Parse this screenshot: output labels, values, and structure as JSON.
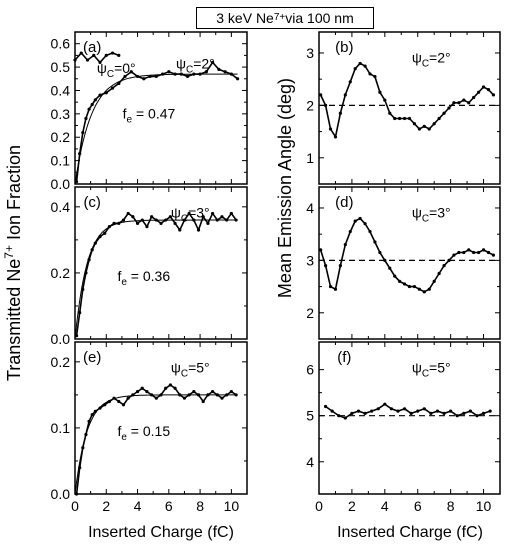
{
  "figure": {
    "title_pre": "3 keV Ne",
    "title_sup": "7+",
    "title_post": " via 100 nm",
    "left_ylabel": "Transmitted Ne7+ Ion Fraction",
    "right_ylabel": "Mean Emission Angle (deg)",
    "xlabel": "Inserted Charge (fC)",
    "colors": {
      "axes": "#000000",
      "data": "#000000",
      "fit": "#000000"
    }
  },
  "chart_data": [
    {
      "id": "a",
      "label": "(a)",
      "type": "line",
      "column": "left",
      "annotations": [
        {
          "kind": "psi",
          "value": "0°"
        },
        {
          "kind": "psi",
          "value": "2°"
        },
        {
          "kind": "fe",
          "value": "0.47"
        }
      ],
      "xlim": [
        0,
        11
      ],
      "ylim": [
        0,
        0.65
      ],
      "xticks": [
        0,
        2,
        4,
        6,
        8,
        10
      ],
      "yticks": [
        0.0,
        0.1,
        0.2,
        0.3,
        0.4,
        0.5,
        0.6
      ],
      "ytick_labels": [
        "0.0",
        "0.1",
        "0.2",
        "0.3",
        "0.4",
        "0.5",
        "0.6"
      ],
      "series": [
        {
          "style": "points",
          "x": [
            0,
            0.4,
            0.8,
            1.2,
            1.6,
            2.0,
            2.4,
            2.8
          ],
          "y": [
            0.53,
            0.56,
            0.53,
            0.55,
            0.52,
            0.55,
            0.56,
            0.55
          ]
        },
        {
          "style": "points",
          "x": [
            0.1,
            0.3,
            0.5,
            0.7,
            0.9,
            1.1,
            1.3,
            1.6,
            2.0,
            2.4,
            2.8,
            3.2,
            3.6,
            4.0,
            4.4,
            4.8,
            5.2,
            5.6,
            6.0,
            6.4,
            6.8,
            7.2,
            7.6,
            8.0,
            8.4,
            8.8,
            9.2,
            9.6,
            10.0,
            10.4
          ],
          "y": [
            0.01,
            0.13,
            0.22,
            0.28,
            0.32,
            0.34,
            0.36,
            0.38,
            0.39,
            0.41,
            0.43,
            0.46,
            0.48,
            0.46,
            0.45,
            0.46,
            0.46,
            0.47,
            0.48,
            0.47,
            0.47,
            0.46,
            0.47,
            0.47,
            0.48,
            0.52,
            0.49,
            0.48,
            0.47,
            0.45
          ]
        },
        {
          "style": "fit",
          "fe": 0.47,
          "k": 0.95
        }
      ]
    },
    {
      "id": "b",
      "label": "(b)",
      "type": "line",
      "column": "right",
      "annotations": [
        {
          "kind": "psi",
          "value": "2°"
        }
      ],
      "xlim": [
        0,
        11
      ],
      "ylim": [
        0.5,
        3.4
      ],
      "xticks": [
        0,
        2,
        4,
        6,
        8,
        10
      ],
      "yticks": [
        1,
        2,
        3
      ],
      "ytick_labels": [
        "1",
        "2",
        "3"
      ],
      "reference_y": 2.0,
      "series": [
        {
          "style": "points",
          "x": [
            0.1,
            0.4,
            0.7,
            1.0,
            1.3,
            1.6,
            1.9,
            2.2,
            2.5,
            2.8,
            3.1,
            3.4,
            3.7,
            4.0,
            4.3,
            4.6,
            4.9,
            5.2,
            5.5,
            5.8,
            6.1,
            6.4,
            6.7,
            7.0,
            7.3,
            7.6,
            7.9,
            8.2,
            8.5,
            8.8,
            9.1,
            9.4,
            9.7,
            10.0,
            10.3,
            10.6
          ],
          "y": [
            2.2,
            2.0,
            1.55,
            1.4,
            1.85,
            2.2,
            2.45,
            2.7,
            2.8,
            2.75,
            2.6,
            2.55,
            2.25,
            2.1,
            1.85,
            1.75,
            1.75,
            1.75,
            1.75,
            1.65,
            1.55,
            1.6,
            1.55,
            1.65,
            1.75,
            1.85,
            1.95,
            2.05,
            2.05,
            2.1,
            2.05,
            2.15,
            2.25,
            2.35,
            2.3,
            2.2
          ]
        }
      ]
    },
    {
      "id": "c",
      "label": "(c)",
      "type": "line",
      "column": "left",
      "annotations": [
        {
          "kind": "psi",
          "value": "3°"
        },
        {
          "kind": "fe",
          "value": "0.36"
        }
      ],
      "xlim": [
        0,
        11
      ],
      "ylim": [
        0,
        0.46
      ],
      "xticks": [
        0,
        2,
        4,
        6,
        8,
        10
      ],
      "yticks": [
        0.0,
        0.2,
        0.4
      ],
      "ytick_labels": [
        "0.0",
        "0.2",
        "0.4"
      ],
      "series": [
        {
          "style": "points",
          "x": [
            0.1,
            0.3,
            0.5,
            0.7,
            0.9,
            1.1,
            1.3,
            1.6,
            1.9,
            2.2,
            2.5,
            2.8,
            3.1,
            3.4,
            3.7,
            4.0,
            4.3,
            4.6,
            4.9,
            5.2,
            5.5,
            5.8,
            6.1,
            6.4,
            6.7,
            7.0,
            7.3,
            7.6,
            7.9,
            8.2,
            8.5,
            8.8,
            9.1,
            9.4,
            9.7,
            10.0,
            10.3
          ],
          "y": [
            0.01,
            0.08,
            0.15,
            0.2,
            0.24,
            0.27,
            0.29,
            0.31,
            0.32,
            0.34,
            0.35,
            0.35,
            0.36,
            0.38,
            0.37,
            0.35,
            0.36,
            0.34,
            0.37,
            0.36,
            0.35,
            0.36,
            0.37,
            0.35,
            0.33,
            0.36,
            0.38,
            0.36,
            0.33,
            0.37,
            0.35,
            0.38,
            0.36,
            0.37,
            0.36,
            0.38,
            0.36
          ]
        },
        {
          "style": "fit",
          "fe": 0.36,
          "k": 1.3
        }
      ]
    },
    {
      "id": "d",
      "label": "(d)",
      "type": "line",
      "column": "right",
      "annotations": [
        {
          "kind": "psi",
          "value": "3°"
        }
      ],
      "xlim": [
        0,
        11
      ],
      "ylim": [
        1.5,
        4.4
      ],
      "xticks": [
        0,
        2,
        4,
        6,
        8,
        10
      ],
      "yticks": [
        2,
        3,
        4
      ],
      "ytick_labels": [
        "2",
        "3",
        "4"
      ],
      "reference_y": 3.0,
      "series": [
        {
          "style": "points",
          "x": [
            0.1,
            0.4,
            0.7,
            1.0,
            1.3,
            1.6,
            1.9,
            2.2,
            2.5,
            2.8,
            3.1,
            3.4,
            3.7,
            4.0,
            4.3,
            4.6,
            4.9,
            5.2,
            5.5,
            5.8,
            6.1,
            6.4,
            6.7,
            7.0,
            7.3,
            7.6,
            7.9,
            8.2,
            8.5,
            8.8,
            9.1,
            9.4,
            9.7,
            10.0,
            10.3,
            10.6
          ],
          "y": [
            3.2,
            2.9,
            2.5,
            2.45,
            2.9,
            3.3,
            3.55,
            3.75,
            3.8,
            3.7,
            3.55,
            3.35,
            3.15,
            3.0,
            2.85,
            2.7,
            2.6,
            2.55,
            2.5,
            2.5,
            2.45,
            2.4,
            2.45,
            2.6,
            2.75,
            2.9,
            3.0,
            3.1,
            3.15,
            3.15,
            3.2,
            3.15,
            3.15,
            3.2,
            3.15,
            3.1
          ]
        }
      ]
    },
    {
      "id": "e",
      "label": "(e)",
      "type": "line",
      "column": "left",
      "annotations": [
        {
          "kind": "psi",
          "value": "5°"
        },
        {
          "kind": "fe",
          "value": "0.15"
        }
      ],
      "xlim": [
        0,
        11
      ],
      "ylim": [
        0,
        0.23
      ],
      "xticks": [
        0,
        2,
        4,
        6,
        8,
        10
      ],
      "yticks": [
        0.0,
        0.1,
        0.2
      ],
      "ytick_labels": [
        "0.0",
        "0.1",
        "0.2"
      ],
      "xtick_labels": [
        "0",
        "2",
        "4",
        "6",
        "8",
        "10"
      ],
      "series": [
        {
          "style": "points",
          "x": [
            0.1,
            0.3,
            0.5,
            0.7,
            0.9,
            1.1,
            1.3,
            1.6,
            1.9,
            2.2,
            2.5,
            2.8,
            3.1,
            3.4,
            3.7,
            4.0,
            4.3,
            4.6,
            4.9,
            5.2,
            5.5,
            5.8,
            6.1,
            6.4,
            6.7,
            7.0,
            7.3,
            7.6,
            7.9,
            8.2,
            8.5,
            8.8,
            9.1,
            9.4,
            9.7,
            10.0,
            10.3
          ],
          "y": [
            0.0,
            0.04,
            0.07,
            0.09,
            0.11,
            0.12,
            0.125,
            0.13,
            0.135,
            0.14,
            0.145,
            0.14,
            0.135,
            0.145,
            0.15,
            0.155,
            0.16,
            0.155,
            0.15,
            0.145,
            0.15,
            0.16,
            0.165,
            0.16,
            0.15,
            0.145,
            0.15,
            0.155,
            0.15,
            0.14,
            0.15,
            0.155,
            0.15,
            0.145,
            0.15,
            0.155,
            0.15
          ]
        },
        {
          "style": "fit",
          "fe": 0.15,
          "k": 1.3
        }
      ]
    },
    {
      "id": "f",
      "label": "(f)",
      "type": "line",
      "column": "right",
      "annotations": [
        {
          "kind": "psi",
          "value": "5°"
        }
      ],
      "xlim": [
        0,
        11
      ],
      "ylim": [
        3.3,
        6.6
      ],
      "xticks": [
        0,
        2,
        4,
        6,
        8,
        10
      ],
      "yticks": [
        4,
        5,
        6
      ],
      "ytick_labels": [
        "4",
        "5",
        "6"
      ],
      "xtick_labels": [
        "0",
        "2",
        "4",
        "6",
        "8",
        "10"
      ],
      "reference_y": 5.0,
      "series": [
        {
          "style": "points",
          "x": [
            0.4,
            0.8,
            1.2,
            1.6,
            2.0,
            2.4,
            2.8,
            3.2,
            3.6,
            4.0,
            4.4,
            4.8,
            5.2,
            5.6,
            6.0,
            6.4,
            6.8,
            7.2,
            7.6,
            8.0,
            8.4,
            8.8,
            9.2,
            9.6,
            10.0,
            10.4
          ],
          "y": [
            5.2,
            5.1,
            5.0,
            4.95,
            5.05,
            5.1,
            5.05,
            5.1,
            5.15,
            5.25,
            5.15,
            5.1,
            5.15,
            5.05,
            5.1,
            5.15,
            5.05,
            5.1,
            5.05,
            5.1,
            5.0,
            5.05,
            5.1,
            5.0,
            5.05,
            5.1
          ]
        }
      ]
    }
  ]
}
